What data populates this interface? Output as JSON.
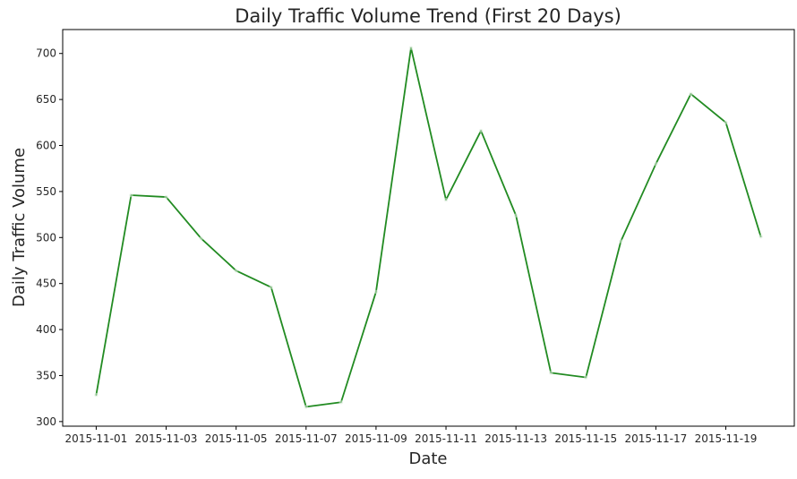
{
  "chart_data": {
    "type": "line",
    "title": "Daily Traffic Volume Trend (First 20 Days)",
    "xlabel": "Date",
    "ylabel": "Daily Traffic Volume",
    "x": [
      "2015-11-01",
      "2015-11-02",
      "2015-11-03",
      "2015-11-04",
      "2015-11-05",
      "2015-11-06",
      "2015-11-07",
      "2015-11-08",
      "2015-11-09",
      "2015-11-10",
      "2015-11-11",
      "2015-11-12",
      "2015-11-13",
      "2015-11-14",
      "2015-11-15",
      "2015-11-16",
      "2015-11-17",
      "2015-11-18",
      "2015-11-19",
      "2015-11-20"
    ],
    "series": [
      {
        "values": [
          329,
          546,
          544,
          499,
          464,
          446,
          316,
          321,
          441,
          706,
          541,
          616,
          524,
          353,
          348,
          496,
          580,
          656,
          625,
          501
        ],
        "color": "#228b22"
      }
    ],
    "xticks": [
      "2015-11-01",
      "2015-11-03",
      "2015-11-05",
      "2015-11-07",
      "2015-11-09",
      "2015-11-11",
      "2015-11-13",
      "2015-11-15",
      "2015-11-17",
      "2015-11-19"
    ],
    "yticks": [
      300,
      350,
      400,
      450,
      500,
      550,
      600,
      650,
      700
    ],
    "ylim": [
      295,
      726
    ],
    "xlim": [
      "2015-10-31T01:00",
      "2015-11-20T23:00"
    ],
    "grid": false,
    "legend": "none"
  }
}
